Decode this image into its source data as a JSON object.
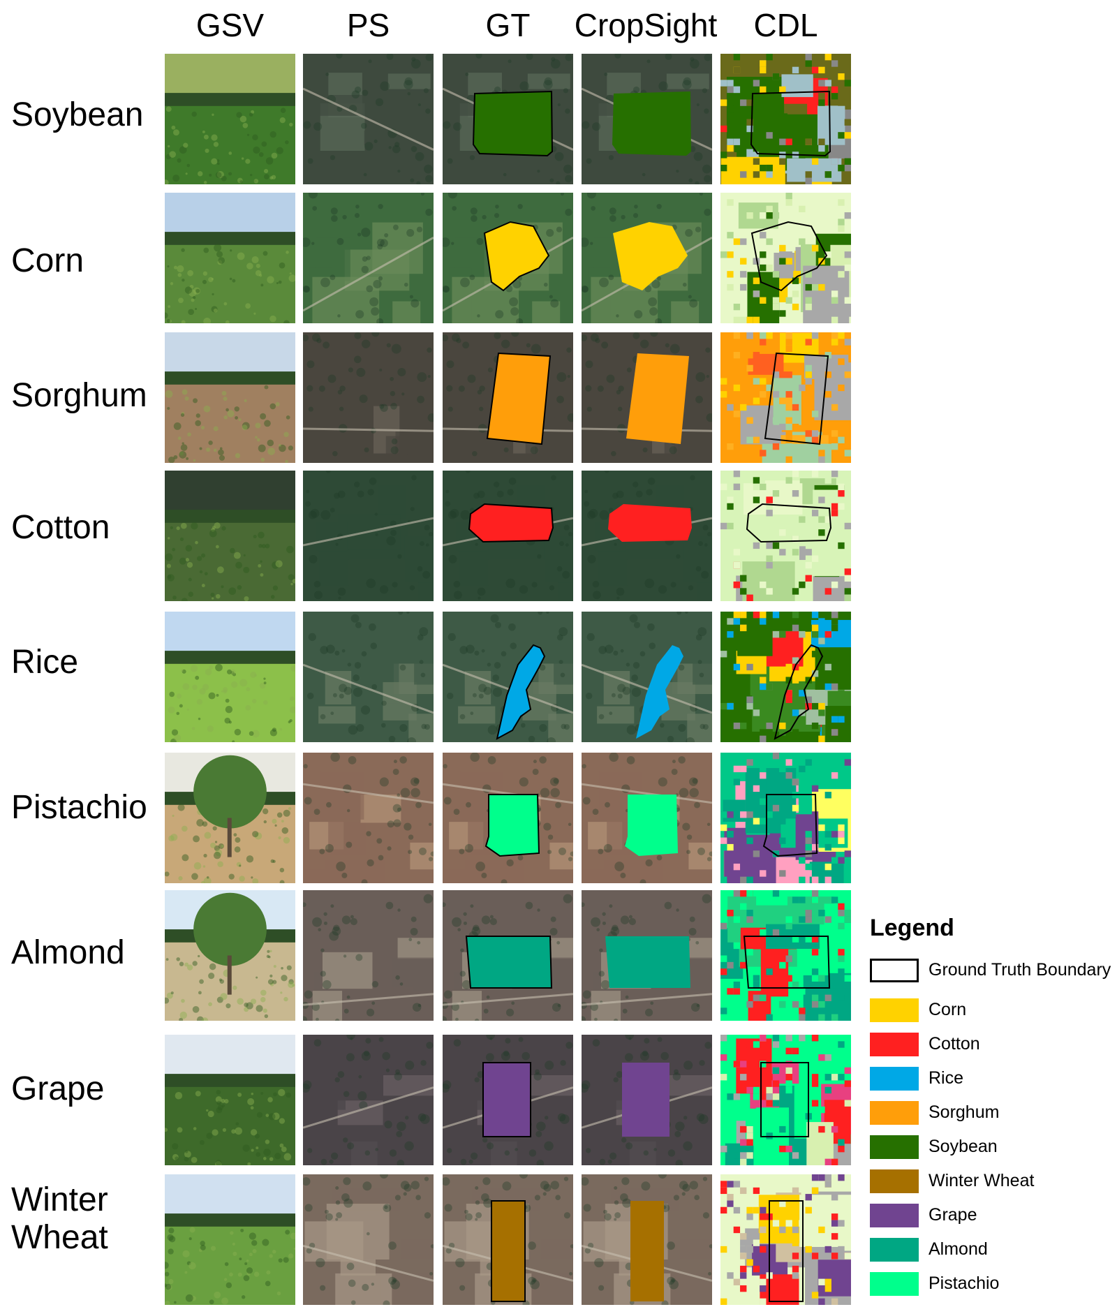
{
  "columns": [
    "GSV",
    "PS",
    "GT",
    "CropSight",
    "CDL"
  ],
  "rows": [
    {
      "label": "Soybean",
      "crop": "soybean"
    },
    {
      "label": "Corn",
      "crop": "corn"
    },
    {
      "label": "Sorghum",
      "crop": "sorghum"
    },
    {
      "label": "Cotton",
      "crop": "cotton"
    },
    {
      "label": "Rice",
      "crop": "rice"
    },
    {
      "label": "Pistachio",
      "crop": "pistachio"
    },
    {
      "label": "Almond",
      "crop": "almond"
    },
    {
      "label": "Grape",
      "crop": "grape"
    },
    {
      "label": "Winter\nWheat",
      "crop": "winter_wheat"
    }
  ],
  "legend": {
    "title": "Legend",
    "boundary_label": "Ground Truth Boundary",
    "items": [
      {
        "label": "Corn",
        "color": "#ffd200"
      },
      {
        "label": "Cotton",
        "color": "#ff2020"
      },
      {
        "label": "Rice",
        "color": "#00a8e6"
      },
      {
        "label": "Sorghum",
        "color": "#ff9e0a"
      },
      {
        "label": "Soybean",
        "color": "#267000"
      },
      {
        "label": "Winter Wheat",
        "color": "#a67000"
      },
      {
        "label": "Grape",
        "color": "#704490"
      },
      {
        "label": "Almond",
        "color": "#00a783"
      },
      {
        "label": "Pistachio",
        "color": "#00ff8c"
      }
    ]
  }
}
